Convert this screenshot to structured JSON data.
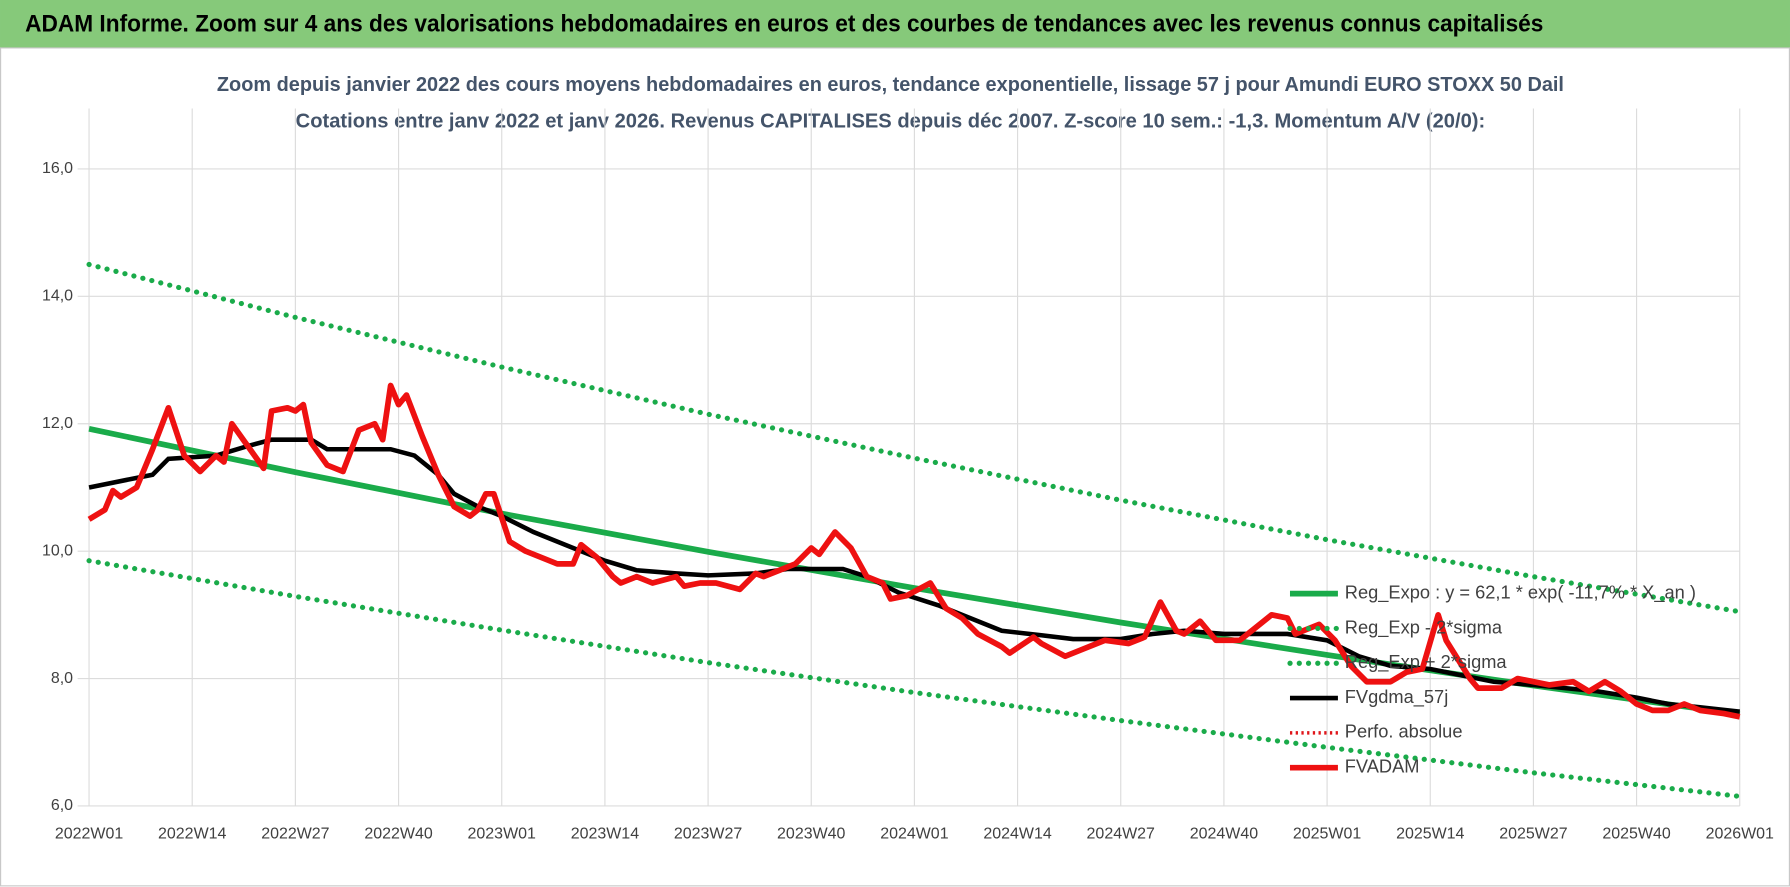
{
  "chart_data": {
    "type": "line",
    "title": "ADAM Informe. Zoom sur 4 ans des valorisations hebdomadaires en euros et des courbes de tendances avec les revenus connus capitalisés",
    "subtitle": [
      "Zoom depuis janvier 2022 des cours moyens hebdomadaires en euros, tendance exponentielle, lissage 57 j pour Amundi EURO STOXX 50 Dail",
      "Cotations entre janv 2022 et janv 2026. Revenus CAPITALISES depuis déc 2007. Z-score 10 sem.: -1,3. Momentum A/V (20/0):"
    ],
    "xlim": [
      0,
      208
    ],
    "xticks": [
      {
        "value": 0,
        "label": "2022W01"
      },
      {
        "value": 13,
        "label": "2022W14"
      },
      {
        "value": 26,
        "label": "2022W27"
      },
      {
        "value": 39,
        "label": "2022W40"
      },
      {
        "value": 52,
        "label": "2023W01"
      },
      {
        "value": 65,
        "label": "2023W14"
      },
      {
        "value": 78,
        "label": "2023W27"
      },
      {
        "value": 91,
        "label": "2023W40"
      },
      {
        "value": 104,
        "label": "2024W01"
      },
      {
        "value": 117,
        "label": "2024W14"
      },
      {
        "value": 130,
        "label": "2024W27"
      },
      {
        "value": 143,
        "label": "2024W40"
      },
      {
        "value": 156,
        "label": "2025W01"
      },
      {
        "value": 169,
        "label": "2025W14"
      },
      {
        "value": 182,
        "label": "2025W27"
      },
      {
        "value": 195,
        "label": "2025W40"
      },
      {
        "value": 208,
        "label": "2026W01"
      }
    ],
    "ylim": [
      6,
      16
    ],
    "yticks": [
      {
        "value": 6,
        "label": "6,0"
      },
      {
        "value": 8,
        "label": "8,0"
      },
      {
        "value": 10,
        "label": "10,0"
      },
      {
        "value": 12,
        "label": "12,0"
      },
      {
        "value": 14,
        "label": "14,0"
      },
      {
        "value": 16,
        "label": "16,0"
      }
    ],
    "grid": true,
    "legend": "right",
    "series": [
      {
        "name": "Reg_Expo : y = 62,1 * exp( -11,7% * X_an )",
        "color": "#1aab4a",
        "style": "solid",
        "x": [
          0,
          26,
          52,
          78,
          104,
          130,
          156,
          182,
          208
        ],
        "values": [
          11.92,
          11.24,
          10.59,
          9.99,
          9.42,
          8.88,
          8.37,
          7.89,
          7.44
        ]
      },
      {
        "name": "Reg_Exp - 2*sigma",
        "color": "#1aab4a",
        "style": "dotted",
        "x": [
          0,
          26,
          52,
          78,
          104,
          130,
          156,
          182,
          208
        ],
        "values": [
          9.85,
          9.29,
          8.76,
          8.25,
          7.78,
          7.34,
          6.92,
          6.52,
          6.15
        ]
      },
      {
        "name": "Reg_Exp + 2*sigma",
        "color": "#1aab4a",
        "style": "dotted",
        "x": [
          0,
          26,
          52,
          78,
          104,
          130,
          156,
          182,
          208
        ],
        "values": [
          14.5,
          13.67,
          12.89,
          12.15,
          11.46,
          10.8,
          10.18,
          9.6,
          9.05
        ]
      },
      {
        "name": "FVgdma_57j",
        "color": "#000000",
        "style": "solid",
        "x": [
          0,
          8,
          10,
          16,
          20,
          23,
          28,
          30,
          35,
          38,
          41,
          44,
          46,
          49,
          52,
          56,
          61,
          65,
          69,
          74,
          78,
          84,
          88,
          91,
          95,
          98,
          102,
          107,
          111,
          115,
          120,
          124,
          130,
          134,
          138,
          143,
          147,
          151,
          156,
          160,
          164,
          169,
          173,
          177,
          182,
          186,
          190,
          195,
          199,
          203,
          208
        ],
        "values": [
          11.0,
          11.2,
          11.45,
          11.5,
          11.65,
          11.75,
          11.75,
          11.6,
          11.6,
          11.6,
          11.5,
          11.2,
          10.9,
          10.7,
          10.55,
          10.3,
          10.05,
          9.85,
          9.7,
          9.65,
          9.62,
          9.65,
          9.72,
          9.72,
          9.72,
          9.6,
          9.35,
          9.15,
          8.95,
          8.75,
          8.68,
          8.62,
          8.62,
          8.7,
          8.75,
          8.7,
          8.7,
          8.7,
          8.6,
          8.35,
          8.2,
          8.15,
          8.05,
          7.95,
          7.9,
          7.85,
          7.8,
          7.7,
          7.6,
          7.55,
          7.48
        ]
      },
      {
        "name": "Perfo. absolue",
        "color": "#e0161b",
        "style": "dotted-thin",
        "x": [],
        "values": []
      },
      {
        "name": "FVADAM",
        "color": "#ee1111",
        "style": "solid",
        "x": [
          0,
          2,
          3,
          4,
          6,
          8,
          10,
          12,
          14,
          16,
          17,
          18,
          20,
          22,
          23,
          25,
          26,
          27,
          28,
          30,
          32,
          34,
          36,
          37,
          38,
          39,
          40,
          42,
          44,
          46,
          48,
          49,
          50,
          51,
          53,
          55,
          57,
          59,
          61,
          62,
          64,
          66,
          67,
          69,
          71,
          74,
          75,
          77,
          79,
          82,
          84,
          85,
          88,
          89,
          91,
          92,
          94,
          96,
          98,
          100,
          101,
          103,
          106,
          108,
          110,
          112,
          115,
          116,
          119,
          120,
          123,
          125,
          128,
          131,
          133,
          135,
          137,
          138,
          140,
          142,
          145,
          147,
          149,
          151,
          152,
          155,
          157,
          159,
          161,
          164,
          166,
          168,
          170,
          171,
          174,
          175,
          178,
          180,
          182,
          184,
          187,
          189,
          191,
          193,
          195,
          197,
          199,
          201,
          203,
          206,
          208
        ],
        "values": [
          10.5,
          10.65,
          10.95,
          10.85,
          11.0,
          11.6,
          12.25,
          11.5,
          11.25,
          11.5,
          11.4,
          12.0,
          11.65,
          11.3,
          12.2,
          12.25,
          12.2,
          12.3,
          11.7,
          11.35,
          11.25,
          11.9,
          12.0,
          11.75,
          12.6,
          12.3,
          12.45,
          11.8,
          11.2,
          10.7,
          10.55,
          10.65,
          10.9,
          10.9,
          10.15,
          10.0,
          9.9,
          9.8,
          9.8,
          10.1,
          9.9,
          9.6,
          9.5,
          9.6,
          9.5,
          9.6,
          9.45,
          9.5,
          9.5,
          9.4,
          9.65,
          9.6,
          9.75,
          9.8,
          10.05,
          9.95,
          10.3,
          10.05,
          9.6,
          9.5,
          9.25,
          9.3,
          9.5,
          9.1,
          8.95,
          8.7,
          8.5,
          8.4,
          8.65,
          8.55,
          8.35,
          8.45,
          8.6,
          8.55,
          8.65,
          9.2,
          8.75,
          8.7,
          8.9,
          8.6,
          8.6,
          8.8,
          9.0,
          8.95,
          8.7,
          8.85,
          8.6,
          8.2,
          7.95,
          7.95,
          8.1,
          8.15,
          9.0,
          8.6,
          8.0,
          7.85,
          7.85,
          8.0,
          7.95,
          7.9,
          7.95,
          7.8,
          7.95,
          7.8,
          7.6,
          7.5,
          7.5,
          7.6,
          7.5,
          7.45,
          7.4
        ]
      }
    ]
  }
}
